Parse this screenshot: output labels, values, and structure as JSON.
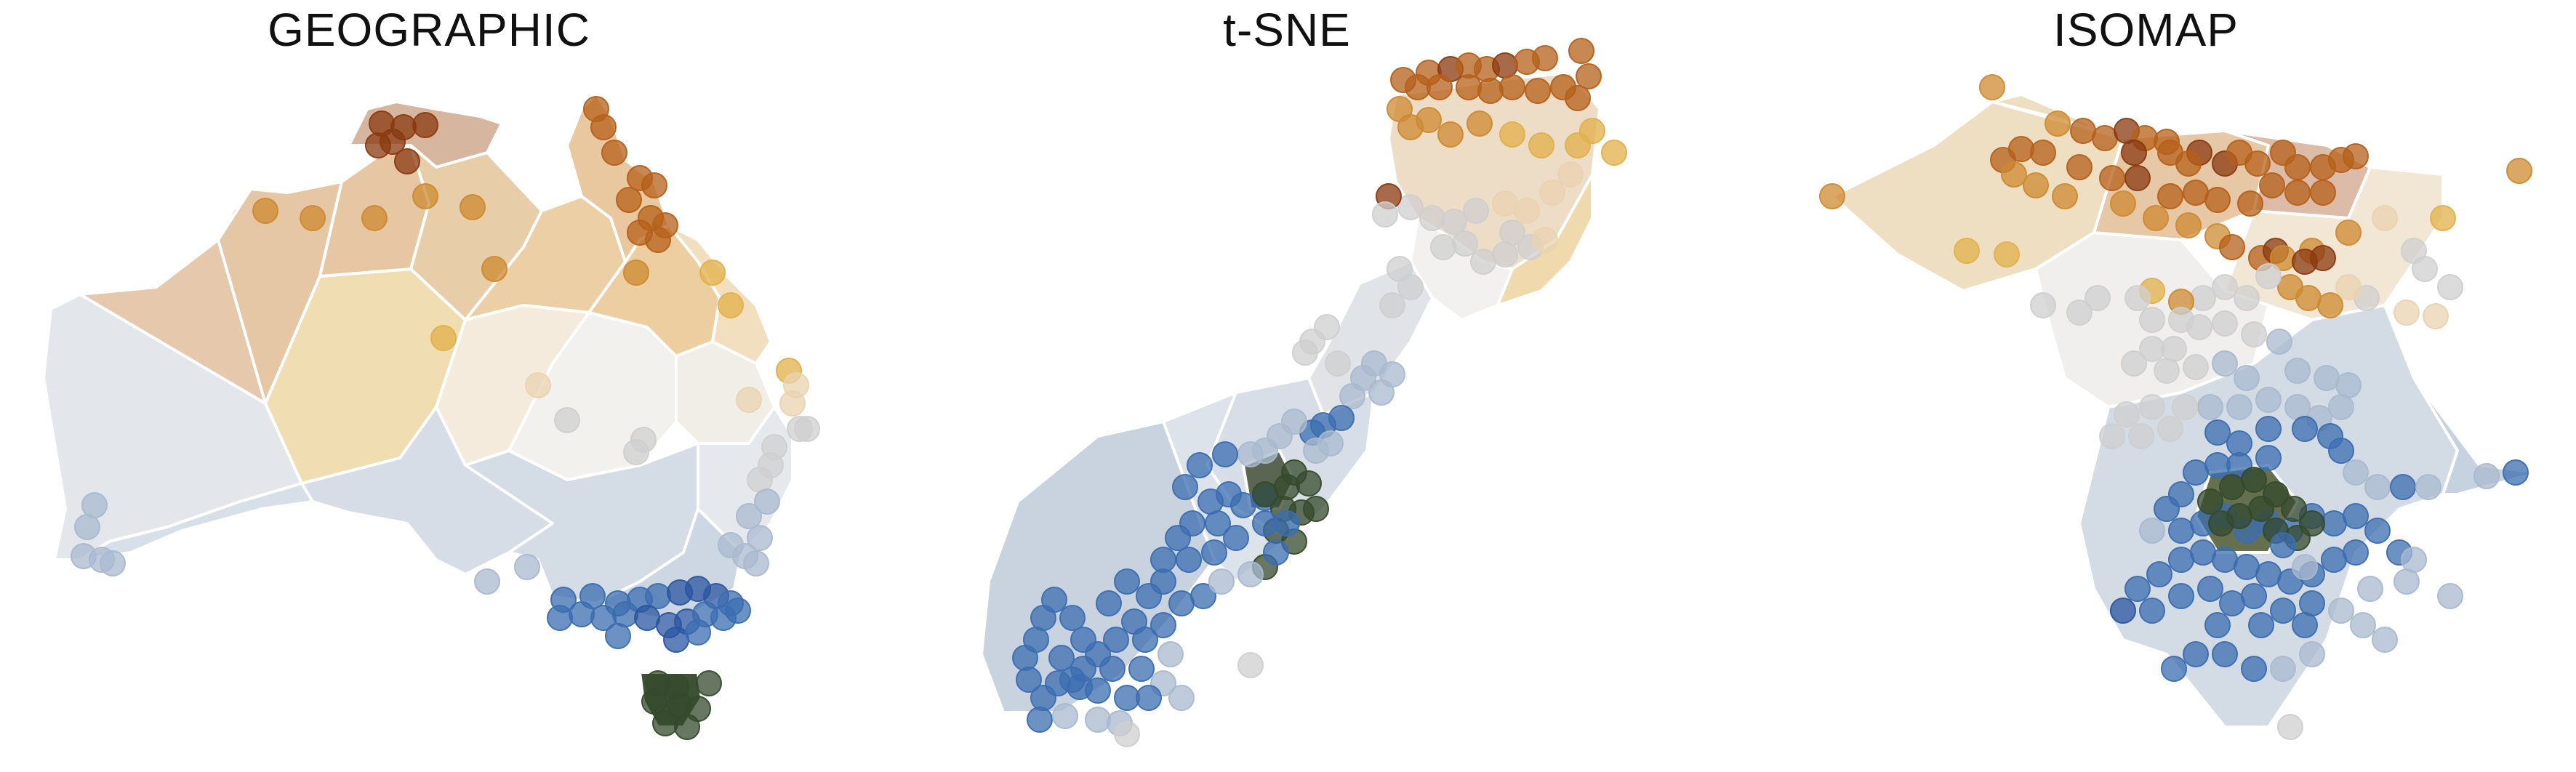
{
  "panels": [
    {
      "title": "GEOGRAPHIC"
    },
    {
      "title": "t-SNE"
    },
    {
      "title": "ISOMAP"
    }
  ],
  "colors": {
    "north_dark": "#8a3a10",
    "north": "#b5601a",
    "orange": "#cd8a30",
    "gold": "#e2b04a",
    "sand": "#e9d3b0",
    "pale": "#f1eeea",
    "light_gray": "#cfcfcf",
    "gray_blue": "#a9b9cf",
    "blue": "#3b6db0",
    "navy": "#2a55a0",
    "tasmania": "#354a2c"
  }
}
